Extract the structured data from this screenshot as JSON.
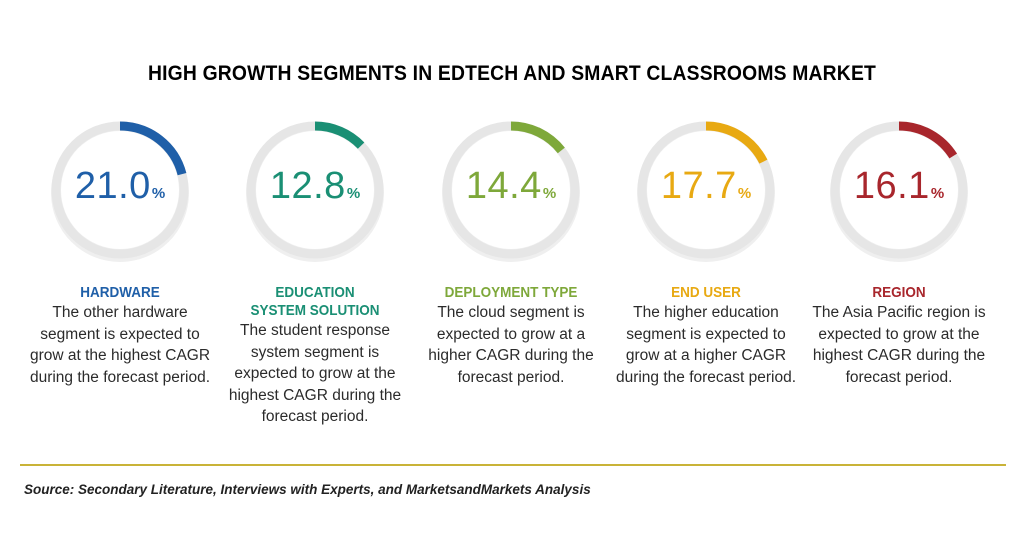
{
  "title": "HIGH GROWTH SEGMENTS IN EDTECH AND SMART CLASSROOMS MARKET",
  "source": "Source: Secondary Literature, Interviews with Experts, and MarketsandMarkets Analysis",
  "colors": {
    "track": "#e6e6e6",
    "divider": "#c9b338"
  },
  "chart_data": {
    "type": "gauge",
    "unit": "%",
    "segments": [
      {
        "name": "HARDWARE",
        "value": 21.0,
        "value_label": "21.0",
        "color": "#1f5fa8",
        "description": "The other hardware segment is expected to grow at the highest CAGR during the forecast period."
      },
      {
        "name": "EDUCATION SYSTEM SOLUTION",
        "value": 12.8,
        "value_label": "12.8",
        "color": "#1a8f74",
        "description": "The student response system segment is expected to grow at the highest CAGR during the forecast period."
      },
      {
        "name": "DEPLOYMENT TYPE",
        "value": 14.4,
        "value_label": "14.4",
        "color": "#7ea83a",
        "description": "The cloud segment is expected to grow at a higher CAGR during the forecast period."
      },
      {
        "name": "END USER",
        "value": 17.7,
        "value_label": "17.7",
        "color": "#e8a912",
        "description": "The higher education segment is expected to grow at a higher CAGR during the forecast period."
      },
      {
        "name": "REGION",
        "value": 16.1,
        "value_label": "16.1",
        "color": "#a8262c",
        "description": "The Asia Pacific region is expected to grow at the highest CAGR during the forecast period."
      }
    ]
  }
}
